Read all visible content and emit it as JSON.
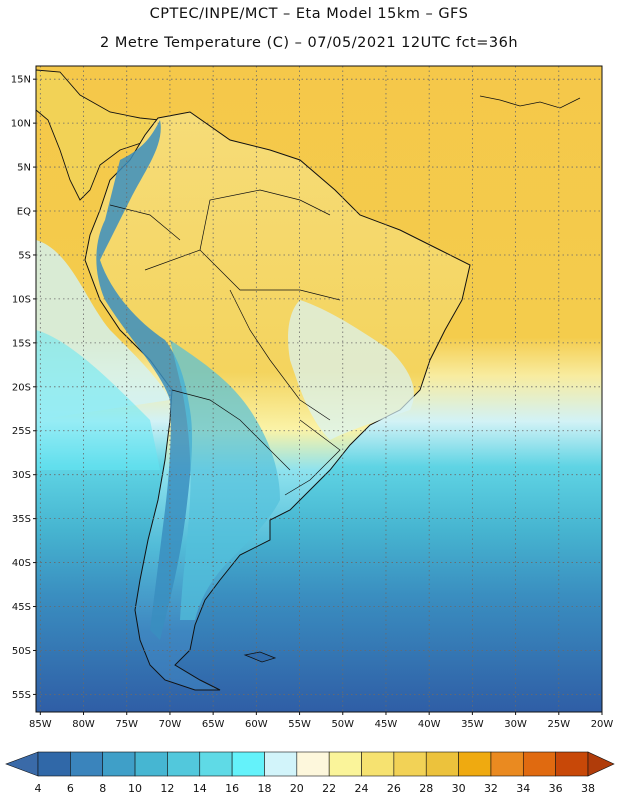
{
  "header": {
    "title_line1": "CPTEC/INPE/MCT –  Eta Model 15km – GFS",
    "title_line2": "2 Metre Temperature (C) – 07/05/2021 12UTC fct=36h"
  },
  "map": {
    "lat_labels": [
      "15N",
      "10N",
      "5N",
      "EQ",
      "5S",
      "10S",
      "15S",
      "20S",
      "25S",
      "30S",
      "35S",
      "40S",
      "45S",
      "50S",
      "55S"
    ],
    "lon_labels": [
      "85W",
      "80W",
      "75W",
      "70W",
      "65W",
      "60W",
      "55W",
      "50W",
      "45W",
      "40W",
      "35W",
      "30W",
      "25W",
      "20W"
    ],
    "lat_range": [
      16.5,
      -57
    ],
    "lon_range": [
      -85.5,
      -20
    ]
  },
  "colorbar": {
    "labels": [
      "4",
      "6",
      "8",
      "10",
      "12",
      "14",
      "16",
      "18",
      "20",
      "22",
      "24",
      "26",
      "28",
      "30",
      "32",
      "34",
      "36",
      "38"
    ],
    "colors": [
      "#3068a8",
      "#3a84bc",
      "#3f9fc8",
      "#46b6d2",
      "#52c8dc",
      "#5fdae6",
      "#64f2fa",
      "#d2f4fa",
      "#fdf7dc",
      "#faf49a",
      "#f6e270",
      "#f2d256",
      "#ecc23c",
      "#efaa10",
      "#ea8a20",
      "#e06a10",
      "#c84808"
    ],
    "left_arrow_color": "#3a6aa8",
    "right_arrow_color": "#b03c0a"
  },
  "palette": {
    "ocean_warm": "#f5c640",
    "land_warm": "#f4d868",
    "andes": "#64dcec",
    "south_cold": "#2f5ea6"
  }
}
